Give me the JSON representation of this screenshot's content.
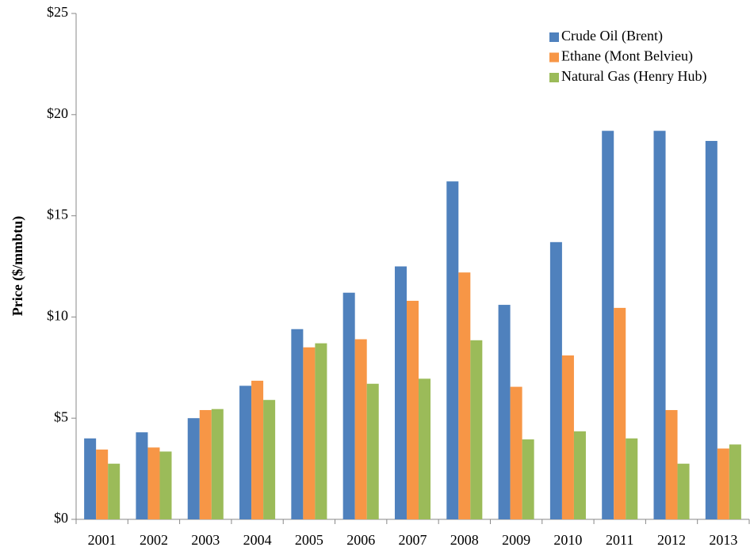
{
  "chart_data": {
    "type": "bar",
    "ylabel": "Price ($/mmbtu)",
    "categories": [
      "2001",
      "2002",
      "2003",
      "2004",
      "2005",
      "2006",
      "2007",
      "2008",
      "2009",
      "2010",
      "2011",
      "2012",
      "2013"
    ],
    "series": [
      {
        "name": "Crude Oil (Brent)",
        "color": "#4f81bd",
        "values": [
          4.0,
          4.3,
          5.0,
          6.6,
          9.4,
          11.2,
          12.5,
          16.7,
          10.6,
          13.7,
          19.2,
          19.2,
          18.7
        ]
      },
      {
        "name": "Ethane (Mont Belvieu)",
        "color": "#f79646",
        "values": [
          3.45,
          3.55,
          5.4,
          6.85,
          8.5,
          8.9,
          10.8,
          12.2,
          6.55,
          8.1,
          10.45,
          5.4,
          3.5
        ]
      },
      {
        "name": "Natural Gas (Henry Hub)",
        "color": "#9bbb59",
        "values": [
          2.75,
          3.35,
          5.45,
          5.9,
          8.7,
          6.7,
          6.95,
          8.85,
          3.95,
          4.35,
          4.0,
          2.75,
          3.7
        ]
      }
    ],
    "ylim": [
      0,
      25
    ],
    "yticks": [
      {
        "value": 0,
        "label": "$0"
      },
      {
        "value": 5,
        "label": "$5"
      },
      {
        "value": 10,
        "label": "$10"
      },
      {
        "value": 15,
        "label": "$15"
      },
      {
        "value": 20,
        "label": "$20"
      },
      {
        "value": 25,
        "label": "$25"
      }
    ],
    "grid": false,
    "legend": "top-right"
  }
}
